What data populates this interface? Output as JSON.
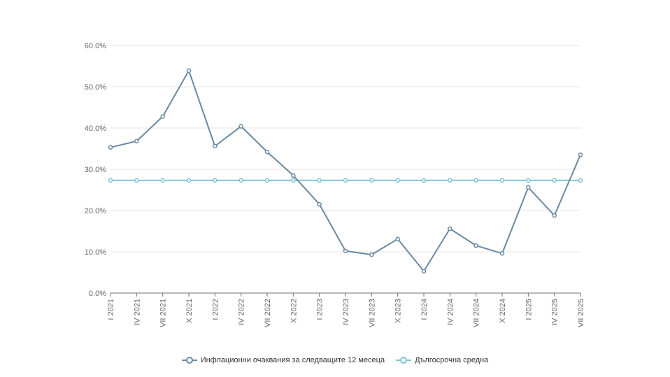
{
  "chart_data": {
    "type": "line",
    "categories": [
      "I 2021",
      "IV 2021",
      "VII 2021",
      "X 2021",
      "I 2022",
      "IV 2022",
      "VII 2022",
      "X 2022",
      "I 2023",
      "IV 2023",
      "VII 2023",
      "X 2023",
      "I 2024",
      "IV 2024",
      "VII 2024",
      "X 2024",
      "I 2025",
      "IV 2025",
      "VII 2025"
    ],
    "series": [
      {
        "name": "Инфлационни очаквания за следващите 12 месеца",
        "color": "#6a8aa4",
        "values": [
          35.3,
          36.8,
          42.8,
          53.9,
          35.6,
          40.4,
          34.2,
          28.5,
          21.5,
          10.2,
          9.3,
          13.1,
          5.3,
          15.6,
          11.5,
          9.6,
          25.6,
          18.8,
          33.5
        ]
      },
      {
        "name": "Дългосрочна средна",
        "color": "#7fc4d6",
        "values": [
          27.3,
          27.3,
          27.3,
          27.3,
          27.3,
          27.3,
          27.3,
          27.3,
          27.3,
          27.3,
          27.3,
          27.3,
          27.3,
          27.3,
          27.3,
          27.3,
          27.3,
          27.3,
          27.3
        ]
      }
    ],
    "yticks": [
      "0.0%",
      "10.0%",
      "20.0%",
      "30.0%",
      "40.0%",
      "50.0%",
      "60.0%"
    ],
    "ylim": [
      0,
      60
    ],
    "grid": true,
    "legend_position": "bottom-center"
  }
}
